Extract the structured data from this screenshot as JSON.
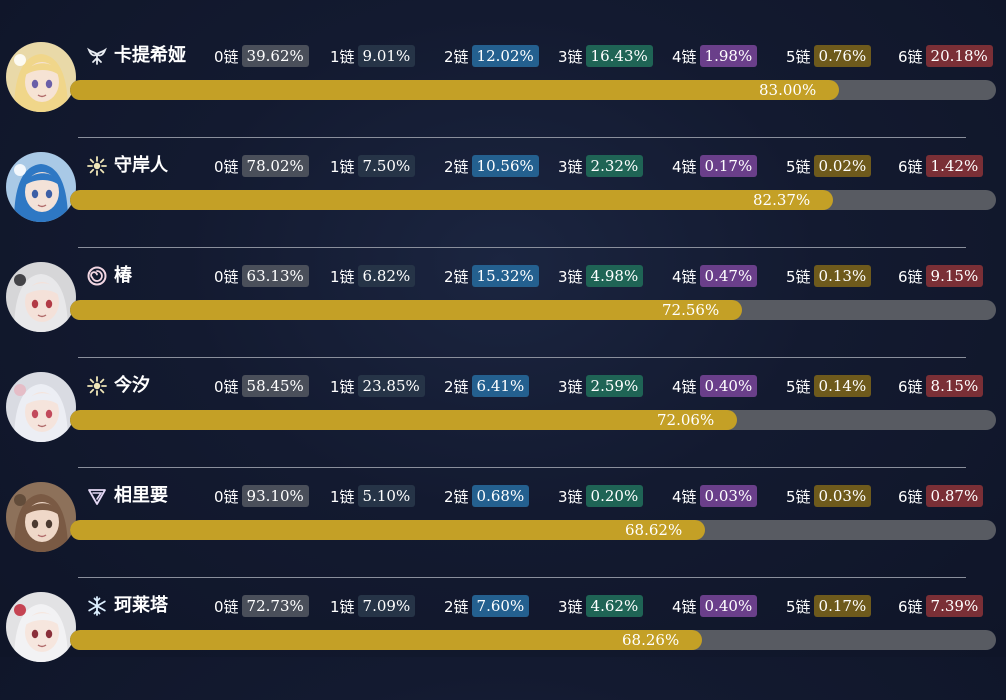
{
  "chain_labels": [
    "0链",
    "1链",
    "2链",
    "3链",
    "4链",
    "5链",
    "6链"
  ],
  "characters": [
    {
      "name": "卡提希娅",
      "element_icon": "aero-wing-icon",
      "avatar_icon": "blonde-flower-crown-portrait",
      "chains": [
        "39.62%",
        "9.01%",
        "12.02%",
        "16.43%",
        "1.98%",
        "0.76%",
        "20.18%"
      ],
      "ownership": "83.00%",
      "ownership_value": 0.83
    },
    {
      "name": "守岸人",
      "element_icon": "spectro-star-icon",
      "avatar_icon": "blue-hair-portrait",
      "chains": [
        "78.02%",
        "7.50%",
        "10.56%",
        "2.32%",
        "0.17%",
        "0.02%",
        "1.42%"
      ],
      "ownership": "82.37%",
      "ownership_value": 0.8237
    },
    {
      "name": "椿",
      "element_icon": "havoc-swirl-icon",
      "avatar_icon": "white-hair-red-streak-portrait",
      "chains": [
        "63.13%",
        "6.82%",
        "15.32%",
        "4.98%",
        "0.47%",
        "0.13%",
        "9.15%"
      ],
      "ownership": "72.56%",
      "ownership_value": 0.7256
    },
    {
      "name": "今汐",
      "element_icon": "spectro-star-icon",
      "avatar_icon": "silver-hair-portrait",
      "chains": [
        "58.45%",
        "23.85%",
        "6.41%",
        "2.59%",
        "0.40%",
        "0.14%",
        "8.15%"
      ],
      "ownership": "72.06%",
      "ownership_value": 0.7206
    },
    {
      "name": "相里要",
      "element_icon": "electro-claw-icon",
      "avatar_icon": "brown-hair-portrait",
      "chains": [
        "93.10%",
        "5.10%",
        "0.68%",
        "0.20%",
        "0.03%",
        "0.03%",
        "0.87%"
      ],
      "ownership": "68.62%",
      "ownership_value": 0.6862
    },
    {
      "name": "珂莱塔",
      "element_icon": "glacio-snowflake-icon",
      "avatar_icon": "white-hair-red-ribbon-portrait",
      "chains": [
        "72.73%",
        "7.09%",
        "7.60%",
        "4.62%",
        "0.40%",
        "0.17%",
        "7.39%"
      ],
      "ownership": "68.26%",
      "ownership_value": 0.6826
    }
  ],
  "colors": {
    "bar_fill": "#c4a026",
    "bar_track": "#585b62",
    "chain0": "#4a4f5a",
    "chain1": "#263447",
    "chain2": "#24608f",
    "chain3": "#1f6455",
    "chain4": "#6a3f8a",
    "chain5": "#6e5a1c",
    "chain6": "#7a2f36"
  }
}
